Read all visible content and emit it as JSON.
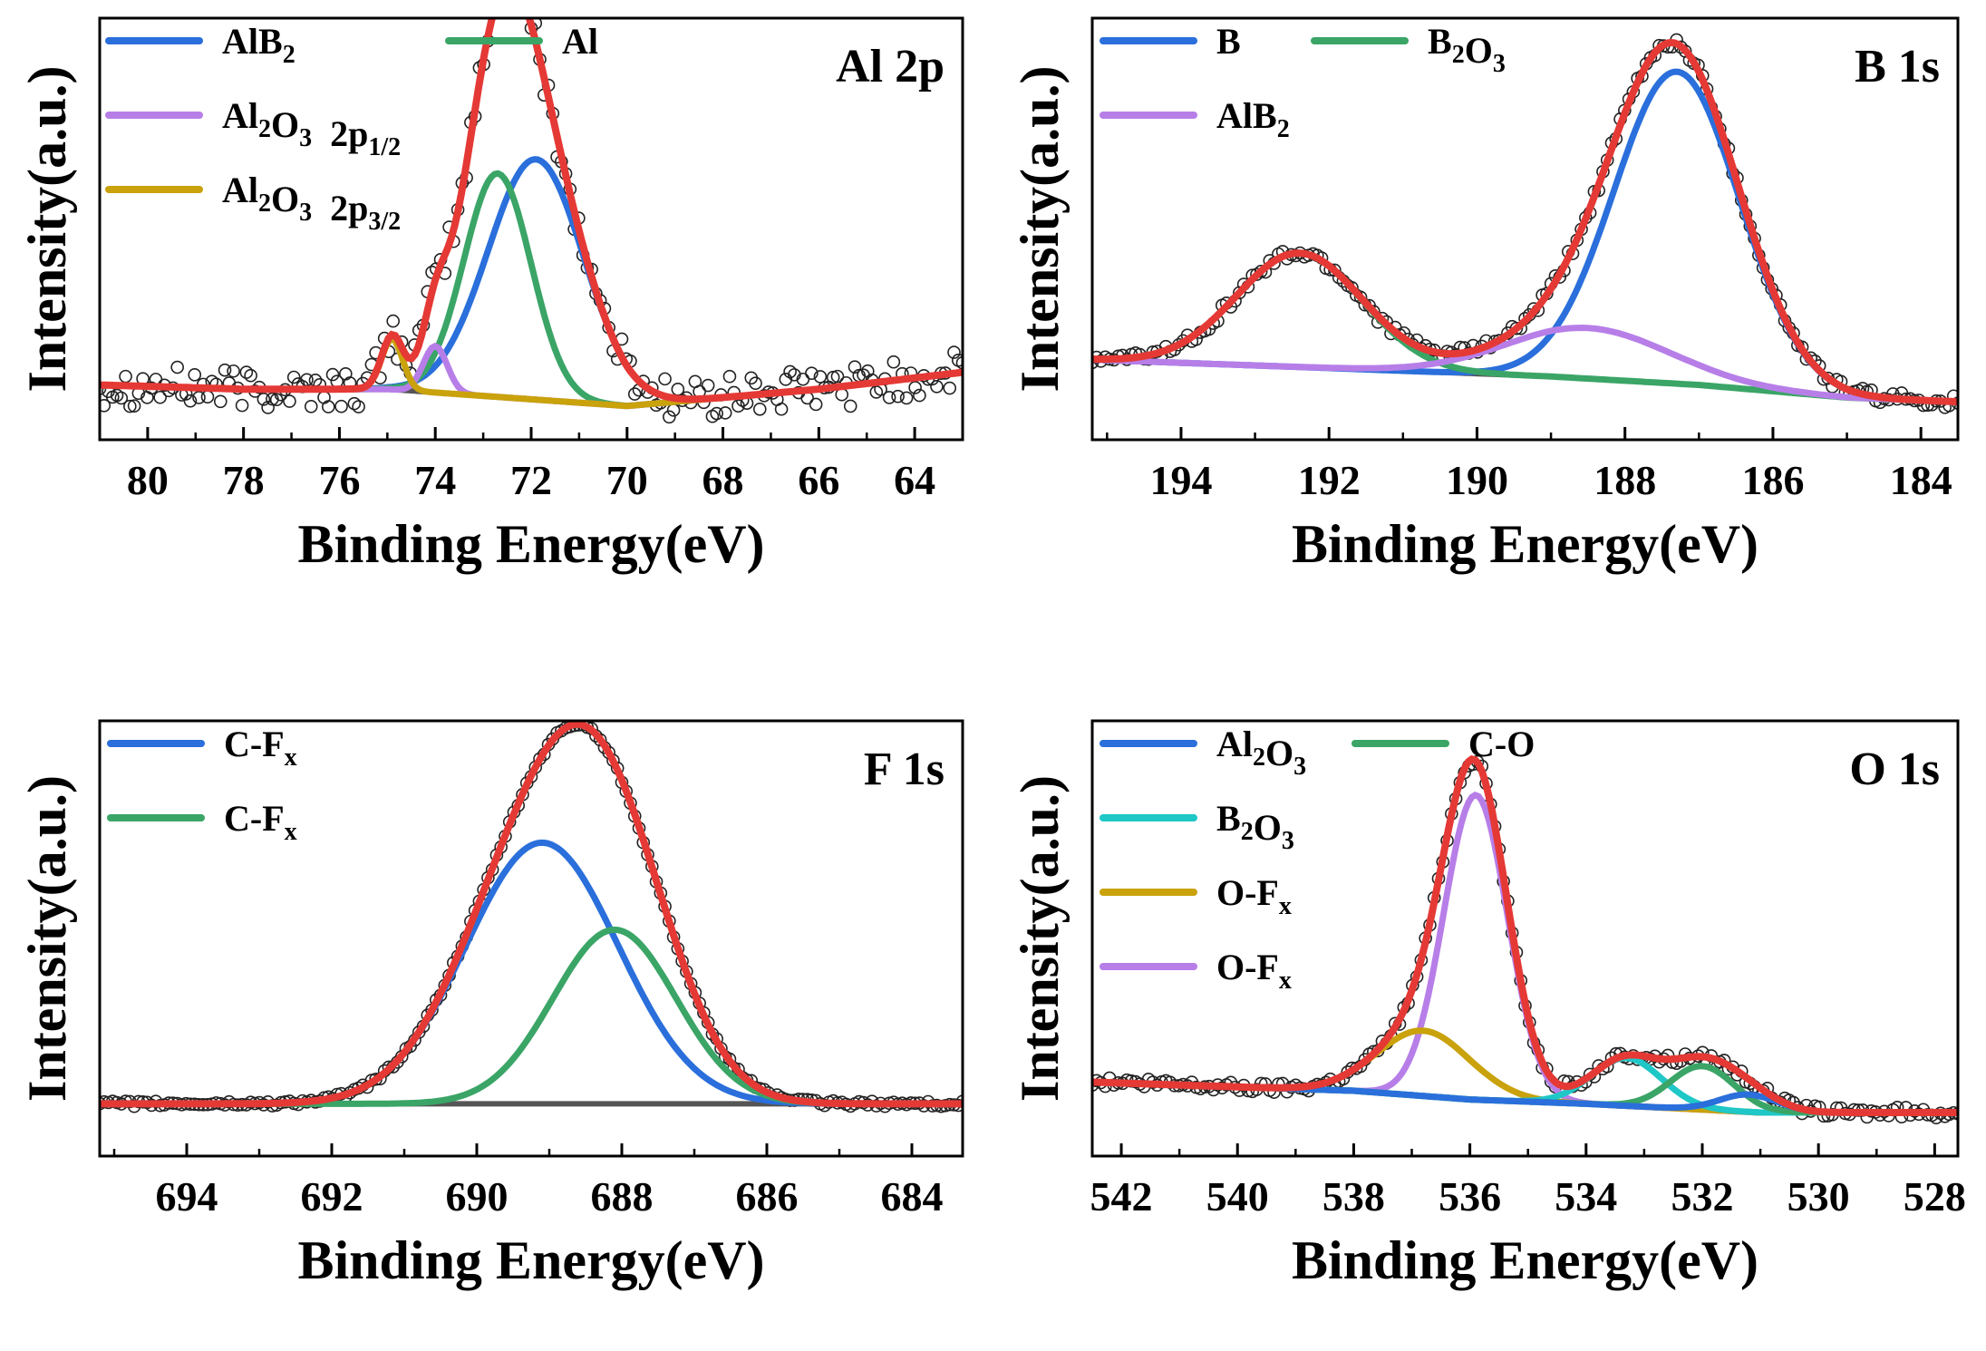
{
  "chart_data": [
    {
      "type": "line",
      "title": "Al 2p",
      "xlabel": "Binding Energy(eV)",
      "ylabel": "Intensity(a.u.)",
      "xlim": [
        81,
        63
      ],
      "ylim": [
        0,
        100
      ],
      "xticks": [
        "80",
        "78",
        "76",
        "74",
        "72",
        "70",
        "68",
        "66",
        "64"
      ],
      "legend": [
        {
          "name": "AlB",
          "sub": "2",
          "tail": "",
          "color": "#2a6fdb"
        },
        {
          "name": "Al",
          "sub": "",
          "tail": "",
          "color": "#3aa566"
        },
        {
          "name": "Al",
          "sub": "2",
          "mid": "O",
          "sub2": "3",
          "tail": "  2p",
          "tailsub": "1/2",
          "color": "#b77ee8"
        },
        {
          "name": "Al",
          "sub": "2",
          "mid": "O",
          "sub2": "3",
          "tail": "  2p",
          "tailsub": "3/2",
          "color": "#c9a20c"
        }
      ],
      "background": {
        "x": [
          81,
          78,
          75,
          72.5,
          70,
          66,
          63
        ],
        "y": [
          13,
          12,
          12,
          10,
          8,
          12,
          16
        ]
      },
      "components": [
        {
          "name": "AlB2",
          "color": "#2a6fdb",
          "center": 71.9,
          "amp": 57,
          "width": 1.0
        },
        {
          "name": "Al",
          "color": "#3aa566",
          "center": 72.7,
          "amp": 53,
          "width": 0.7
        },
        {
          "name": "Al2O3 2p1/2",
          "color": "#b77ee8",
          "center": 74.0,
          "amp": 11,
          "width": 0.25
        },
        {
          "name": "Al2O3 2p3/2",
          "color": "#c9a20c",
          "center": 74.9,
          "amp": 12,
          "width": 0.22
        }
      ],
      "envelope_color": "#e53935",
      "background_color": "#555555",
      "noise": 5
    },
    {
      "type": "line",
      "title": "B 1s",
      "xlabel": "Binding Energy(eV)",
      "ylabel": "Intensity(a.u.)",
      "xlim": [
        195.2,
        183.5
      ],
      "ylim": [
        0,
        100
      ],
      "xticks": [
        "194",
        "192",
        "190",
        "188",
        "186",
        "184"
      ],
      "legend": [
        {
          "name": "B",
          "sub": "",
          "tail": "",
          "color": "#2a6fdb"
        },
        {
          "name": "B",
          "sub": "2",
          "mid": "O",
          "sub2": "3",
          "tail": "",
          "color": "#3aa566"
        },
        {
          "name": "AlB",
          "sub": "2",
          "tail": "",
          "color": "#b77ee8"
        }
      ],
      "background": {
        "x": [
          195.2,
          192,
          189,
          187,
          185,
          183.5
        ],
        "y": [
          19,
          17,
          15,
          13,
          10,
          9
        ]
      },
      "components": [
        {
          "name": "B",
          "color": "#2a6fdb",
          "center": 187.3,
          "amp": 74,
          "width": 0.85
        },
        {
          "name": "B2O3",
          "color": "#3aa566",
          "center": 192.4,
          "amp": 27,
          "width": 0.85
        },
        {
          "name": "AlB2",
          "color": "#b77ee8",
          "center": 188.5,
          "amp": 12,
          "width": 1.1
        }
      ],
      "envelope_color": "#e53935",
      "background_color": "#555555",
      "noise": 1.5
    },
    {
      "type": "line",
      "title": "F 1s",
      "xlabel": "Binding Energy(eV)",
      "ylabel": "Intensity(a.u.)",
      "xlim": [
        695.2,
        683.3
      ],
      "ylim": [
        0,
        100
      ],
      "xticks": [
        "694",
        "692",
        "690",
        "688",
        "686",
        "684"
      ],
      "legend": [
        {
          "name": "C-F",
          "sub": "x",
          "tail": "",
          "color": "#2a6fdb"
        },
        {
          "name": "C-F",
          "sub": "x",
          "tail": "",
          "color": "#3aa566"
        }
      ],
      "background": {
        "x": [
          695.2,
          683.3
        ],
        "y": [
          12,
          12
        ]
      },
      "components": [
        {
          "name": "C-Fx",
          "color": "#2a6fdb",
          "center": 689.1,
          "amp": 60,
          "width": 1.05
        },
        {
          "name": "C-Fx",
          "color": "#3aa566",
          "center": 688.1,
          "amp": 40,
          "width": 0.85
        }
      ],
      "envelope_color": "#e53935",
      "background_color": "#555555",
      "noise": 0.6
    },
    {
      "type": "line",
      "title": "O 1s",
      "xlabel": "Binding Energy(eV)",
      "ylabel": "Intensity(a.u.)",
      "xlim": [
        542.5,
        527.6
      ],
      "ylim": [
        0,
        100
      ],
      "xticks": [
        "542",
        "540",
        "538",
        "536",
        "534",
        "532",
        "530",
        "528"
      ],
      "legend": [
        {
          "name": "Al",
          "sub": "2",
          "mid": "O",
          "sub2": "3",
          "tail": "",
          "color": "#2a6fdb"
        },
        {
          "name": "C-O",
          "sub": "",
          "tail": "",
          "color": "#3aa566"
        },
        {
          "name": "B",
          "sub": "2",
          "mid": "O",
          "sub2": "3",
          "tail": "",
          "color": "#1fc7c7"
        },
        {
          "name": "O-F",
          "sub": "x",
          "tail": "",
          "color": "#c9a20c"
        },
        {
          "name": "O-F",
          "sub": "x",
          "tail": "",
          "color": "#b77ee8"
        }
      ],
      "background": {
        "x": [
          542.5,
          538,
          536,
          534,
          531,
          527.6
        ],
        "y": [
          17,
          15,
          13,
          12,
          10,
          10
        ]
      },
      "components": [
        {
          "name": "O-Fx",
          "color": "#b77ee8",
          "center": 535.9,
          "amp": 70,
          "width": 0.55
        },
        {
          "name": "O-Fx",
          "color": "#c9a20c",
          "center": 536.8,
          "amp": 15,
          "width": 0.8
        },
        {
          "name": "B2O3",
          "color": "#1fc7c7",
          "center": 533.3,
          "amp": 11,
          "width": 0.6
        },
        {
          "name": "C-O",
          "color": "#3aa566",
          "center": 532.0,
          "amp": 10,
          "width": 0.55
        },
        {
          "name": "Al2O3",
          "color": "#2a6fdb",
          "center": 531.2,
          "amp": 4,
          "width": 0.5
        }
      ],
      "envelope_color": "#e53935",
      "background_color": "#555555",
      "noise": 1.2
    }
  ]
}
